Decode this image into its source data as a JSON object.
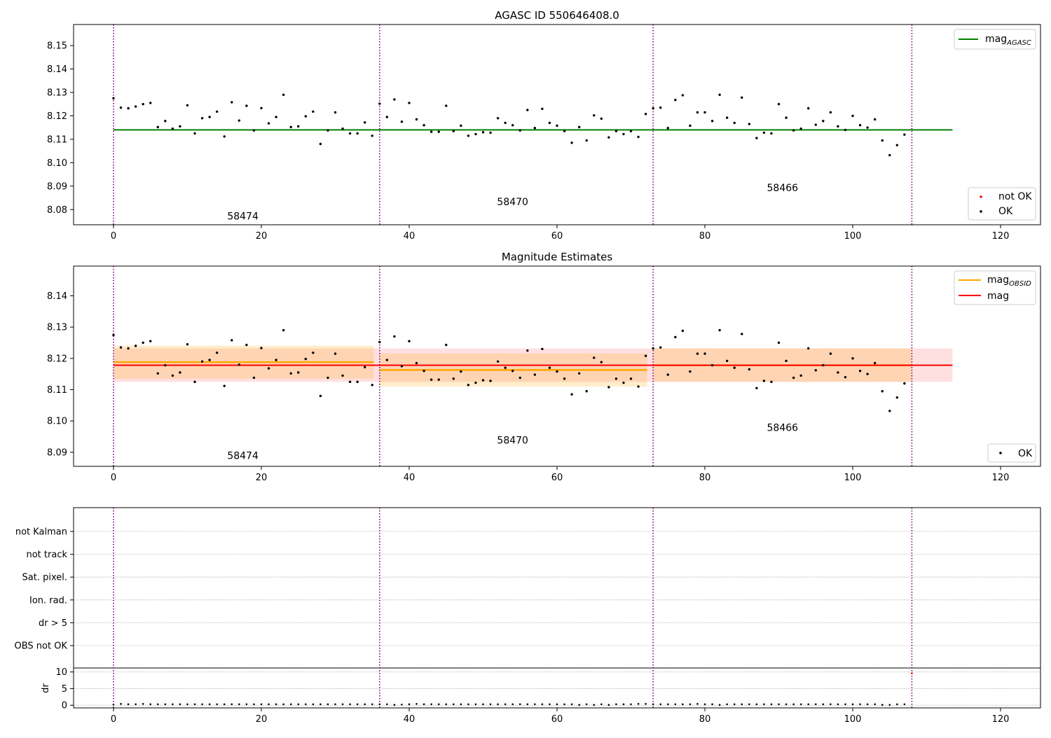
{
  "colors": {
    "ok": "#000000",
    "not_ok": "#ff0000",
    "mag_agasc": "#008000",
    "mag_obsid": "#ffa500",
    "mag": "#ff0000",
    "obs_boundary": "#800080"
  },
  "chart_data": [
    {
      "type": "scatter",
      "title": "AGASC ID 550646408.0",
      "xlim": [
        -5.4,
        125.4
      ],
      "ylim": [
        8.0735,
        8.159
      ],
      "xticks": [
        0,
        20,
        40,
        60,
        80,
        100,
        120
      ],
      "yticks": [
        8.08,
        8.09,
        8.1,
        8.11,
        8.12,
        8.13,
        8.14,
        8.15
      ],
      "legend_upper": {
        "position": "top-right",
        "entries": [
          {
            "label_main": "mag",
            "label_sub": "AGASC",
            "kind": "line",
            "color": "#008000"
          }
        ]
      },
      "legend_lower": {
        "position": "bottom-right",
        "entries": [
          {
            "label": "not OK",
            "kind": "point",
            "color": "#ff0000"
          },
          {
            "label": "OK",
            "kind": "point",
            "color": "#000000"
          }
        ]
      },
      "mag_agasc": 8.114,
      "mag_agasc_xrange": [
        0,
        113.5
      ],
      "obs_boundaries": [
        0,
        36,
        73,
        108
      ],
      "obs_labels": [
        {
          "text": "58474",
          "x": 17.5,
          "y": 8.0758
        },
        {
          "text": "58470",
          "x": 54,
          "y": 8.0818
        },
        {
          "text": "58466",
          "x": 90.5,
          "y": 8.0878
        }
      ]
    },
    {
      "type": "scatter",
      "title": "Magnitude Estimates",
      "xlim": [
        -5.4,
        125.4
      ],
      "ylim": [
        8.0855,
        8.1495
      ],
      "xticks": [
        0,
        20,
        40,
        60,
        80,
        100,
        120
      ],
      "yticks": [
        8.09,
        8.1,
        8.11,
        8.12,
        8.13,
        8.14
      ],
      "legend_upper": {
        "position": "top-right",
        "entries": [
          {
            "label_main": "mag",
            "label_sub": "OBSID",
            "kind": "line",
            "color": "#ffa500"
          },
          {
            "label_main": "mag",
            "label_sub": "",
            "kind": "line",
            "color": "#ff0000"
          }
        ]
      },
      "legend_lower": {
        "position": "bottom-right",
        "entries": [
          {
            "label": "OK",
            "kind": "point",
            "color": "#000000"
          }
        ]
      },
      "mag": 8.1178,
      "mag_band": [
        8.1125,
        8.1232
      ],
      "mag_xrange": [
        0,
        113.5
      ],
      "obsid_segments": [
        {
          "x0": 0,
          "x1": 35.2,
          "mag": 8.1188,
          "lo": 8.1135,
          "hi": 8.1241
        },
        {
          "x0": 36,
          "x1": 72.2,
          "mag": 8.1163,
          "lo": 8.111,
          "hi": 8.1216
        },
        {
          "x0": 73,
          "x1": 108,
          "mag": 8.1178,
          "lo": 8.1125,
          "hi": 8.1232
        }
      ],
      "obs_boundaries": [
        0,
        36,
        73,
        108
      ],
      "obs_labels": [
        {
          "text": "58474",
          "x": 17.5,
          "y": 8.0878
        },
        {
          "text": "58470",
          "x": 54,
          "y": 8.0928
        },
        {
          "text": "58466",
          "x": 90.5,
          "y": 8.0968
        }
      ]
    },
    {
      "type": "scatter",
      "title": "",
      "flags_categories": [
        "not Kalman",
        "not track",
        "Sat. pixel.",
        "Ion. rad.",
        "dr > 5",
        "OBS not OK"
      ],
      "dr_ylabel": "dr",
      "dr_ylim": [
        -0.8,
        11.2
      ],
      "dr_yticks": [
        0,
        5,
        10
      ],
      "xticks": [
        0,
        20,
        40,
        60,
        80,
        100,
        120
      ],
      "obs_boundaries": [
        0,
        36,
        73,
        108
      ],
      "dr_values": [
        0.2,
        0.4,
        0.3,
        0.3,
        0.4,
        0.3,
        0.3,
        0.3,
        0.3,
        0.3,
        0.3,
        0.3,
        0.3,
        0.3,
        0.3,
        0.3,
        0.3,
        0.3,
        0.3,
        0.3,
        0.3,
        0.3,
        0.3,
        0.3,
        0.3,
        0.3,
        0.3,
        0.3,
        0.3,
        0.3,
        0.3,
        0.3,
        0.3,
        0.3,
        0.3,
        0.3,
        0.3,
        0.3,
        0.1,
        0.2,
        0.3,
        0.4,
        0.3,
        0.3,
        0.3,
        0.3,
        0.3,
        0.3,
        0.3,
        0.3,
        0.3,
        0.3,
        0.3,
        0.3,
        0.3,
        0.3,
        0.3,
        0.3,
        0.3,
        0.3,
        0.3,
        0.3,
        0.3,
        0.1,
        0.3,
        0.1,
        0.3,
        0.1,
        0.3,
        0.3,
        0.3,
        0.4,
        0.4,
        0.3,
        0.3,
        0.3,
        0.3,
        0.3,
        0.3,
        0.4,
        0.3,
        0.3,
        0.1,
        0.3,
        0.3,
        0.3,
        0.3,
        0.3,
        0.3,
        0.3,
        0.3,
        0.3,
        0.3,
        0.3,
        0.3,
        0.3,
        0.3,
        0.3,
        0.3,
        0.3,
        0.3,
        0.3,
        0.3,
        0.3,
        0.1,
        0.1,
        0.3,
        0.3,
        9.6
      ],
      "dr_bad_index": 108
    }
  ],
  "mag_points": [
    8.1275,
    8.1235,
    8.1232,
    8.124,
    8.125,
    8.1255,
    8.1152,
    8.1178,
    8.1145,
    8.1155,
    8.1245,
    8.1125,
    8.119,
    8.1195,
    8.1218,
    8.1112,
    8.1258,
    8.118,
    8.1243,
    8.1138,
    8.1233,
    8.1168,
    8.1195,
    8.129,
    8.1152,
    8.1155,
    8.1198,
    8.1218,
    8.108,
    8.1138,
    8.1215,
    8.1145,
    8.1125,
    8.1125,
    8.1172,
    8.1115,
    8.1252,
    8.1195,
    8.127,
    8.1175,
    8.1255,
    8.1185,
    8.116,
    8.1132,
    8.1132,
    8.1243,
    8.1135,
    8.1158,
    8.1115,
    8.1122,
    8.113,
    8.1128,
    8.119,
    8.117,
    8.116,
    8.1138,
    8.1225,
    8.1148,
    8.123,
    8.117,
    8.1158,
    8.1135,
    8.1085,
    8.1152,
    8.1095,
    8.1202,
    8.1188,
    8.1108,
    8.1135,
    8.1122,
    8.1135,
    8.111,
    8.1208,
    8.1232,
    8.1235,
    8.1148,
    8.1268,
    8.1288,
    8.1158,
    8.1215,
    8.1215,
    8.1178,
    8.129,
    8.1192,
    8.117,
    8.1278,
    8.1165,
    8.1105,
    8.1128,
    8.1125,
    8.125,
    8.1192,
    8.1138,
    8.1145,
    8.1232,
    8.1162,
    8.1178,
    8.1215,
    8.1155,
    8.114,
    8.12,
    8.116,
    8.115,
    8.1185,
    8.1095,
    8.1032,
    8.1075,
    8.112
  ]
}
